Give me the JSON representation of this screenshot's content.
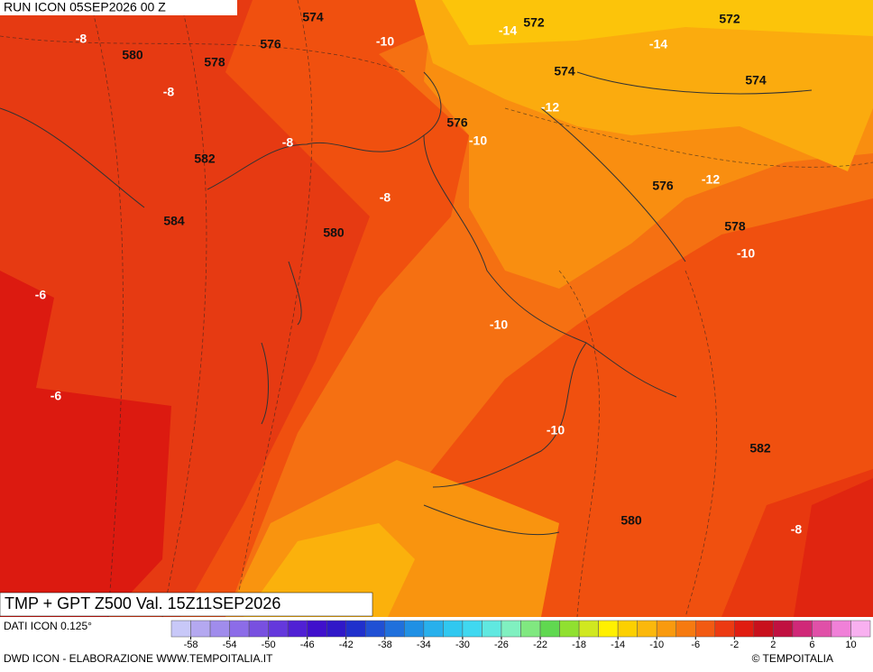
{
  "header": {
    "run": "RUN ICON 05SEP2026 00 Z"
  },
  "map": {
    "labels": [
      "574",
      "-14",
      "572",
      "572",
      "-8",
      "576",
      "-10",
      "-14",
      "580",
      "578",
      "574",
      "574",
      "-8",
      "-12",
      "576",
      "-10",
      "-8",
      "582",
      "576",
      "-12",
      "-8",
      "584",
      "578",
      "580",
      "-10",
      "-6",
      "-10",
      "-6",
      "-10",
      "582",
      "580",
      "-8"
    ]
  },
  "footer": {
    "title": "TMP + GPT Z500 Val. 15Z11SEP2026",
    "source": "DATI ICON 0.125°",
    "credit": "DWD ICON - ELABORAZIONE WWW.TEMPOITALIA.IT",
    "brand": "© TEMPOITALIA"
  },
  "legend": {
    "range": [
      -60,
      12
    ],
    "ticks": [
      -58,
      -54,
      -50,
      -46,
      -42,
      -38,
      -34,
      -30,
      -26,
      -22,
      -18,
      -14,
      -10,
      -6,
      -2,
      2,
      6,
      10
    ],
    "colors": [
      "#c8c8f8",
      "#b4a8f0",
      "#a08cec",
      "#8c6ce8",
      "#7850e0",
      "#6438dc",
      "#5020d4",
      "#4010cc",
      "#3018c8",
      "#2030cc",
      "#2050d4",
      "#2070dc",
      "#2090e4",
      "#28b0ec",
      "#30c8f0",
      "#40d8f0",
      "#60e8e0",
      "#80f0c0",
      "#80e880",
      "#60d850",
      "#90e030",
      "#d0e820",
      "#fff000",
      "#fcd000",
      "#fbb80c",
      "#f99a0e",
      "#f67a10",
      "#f25a12",
      "#ec3a12",
      "#e01c10",
      "#c8101c",
      "#c01040",
      "#d02878",
      "#e050a8",
      "#f080d8",
      "#f8b0f0"
    ]
  }
}
